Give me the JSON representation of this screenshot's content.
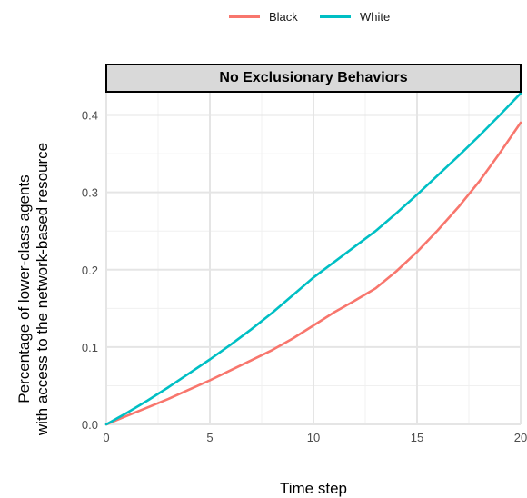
{
  "chart_data": {
    "type": "line",
    "facet_title": "No Exclusionary Behaviors",
    "xlabel": "Time step",
    "ylabel": [
      "Percentage of lower-class agents",
      "with access to the network-based resource"
    ],
    "xlim": [
      0,
      20
    ],
    "ylim": [
      0,
      0.43
    ],
    "x_ticks": [
      0,
      5,
      10,
      15,
      20
    ],
    "x_tick_labels": [
      "0",
      "5",
      "10",
      "15",
      "20"
    ],
    "y_ticks": [
      0,
      0.1,
      0.2,
      0.3,
      0.4
    ],
    "y_tick_labels": [
      "0.0",
      "0.1",
      "0.2",
      "0.3",
      "0.4"
    ],
    "grid": true,
    "legend_position": "top",
    "series": [
      {
        "name": "Black",
        "color": "#F8766D",
        "x": [
          0,
          1,
          2,
          3,
          4,
          5,
          6,
          7,
          8,
          9,
          10,
          11,
          12,
          13,
          14,
          15,
          16,
          17,
          18,
          19,
          20
        ],
        "y": [
          0,
          0.011,
          0.022,
          0.033,
          0.045,
          0.057,
          0.07,
          0.083,
          0.096,
          0.111,
          0.128,
          0.145,
          0.16,
          0.176,
          0.198,
          0.223,
          0.251,
          0.281,
          0.314,
          0.351,
          0.39
        ]
      },
      {
        "name": "White",
        "color": "#00BFC4",
        "x": [
          0,
          1,
          2,
          3,
          4,
          5,
          6,
          7,
          8,
          9,
          10,
          11,
          12,
          13,
          14,
          15,
          16,
          17,
          18,
          19,
          20
        ],
        "y": [
          0,
          0.015,
          0.031,
          0.048,
          0.066,
          0.084,
          0.103,
          0.123,
          0.144,
          0.167,
          0.19,
          0.21,
          0.23,
          0.25,
          0.273,
          0.297,
          0.322,
          0.347,
          0.373,
          0.4,
          0.428
        ]
      }
    ]
  }
}
